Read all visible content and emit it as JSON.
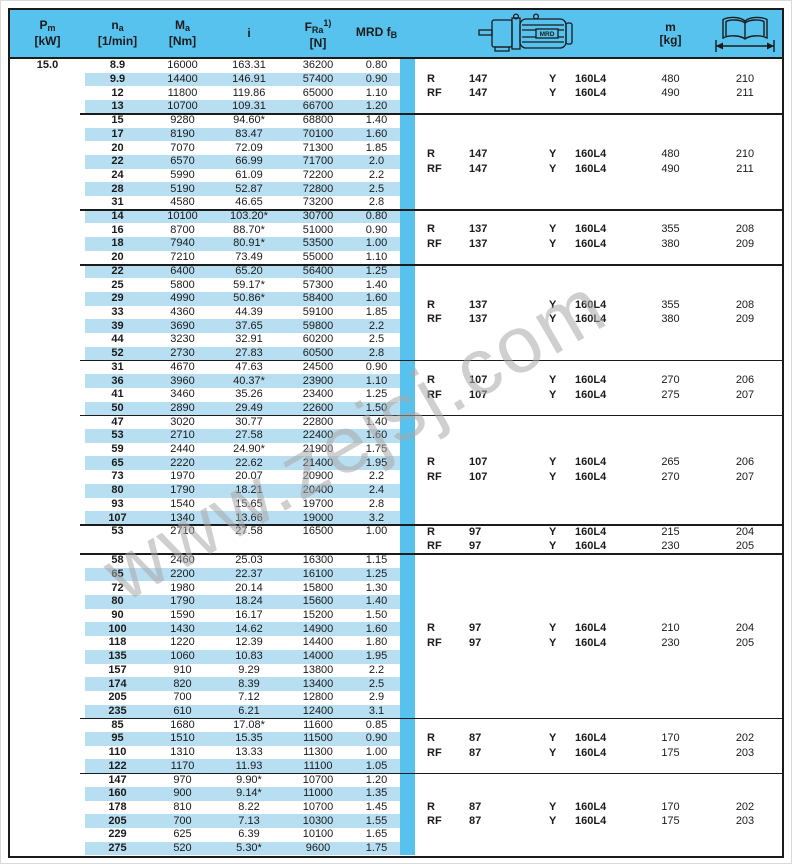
{
  "watermark": "www.zejsj.com",
  "colors": {
    "header_blue": "#58c2ee",
    "stripe_blue": "#b8def2",
    "border": "#1b1b1b"
  },
  "pm_value": "15.0",
  "header": {
    "pm": {
      "main": "P",
      "sub": "m",
      "unit": "[kW]"
    },
    "na": {
      "main": "n",
      "sub": "a",
      "unit": "[1/min]"
    },
    "ma": {
      "main": "M",
      "sub": "a",
      "unit": "[Nm]"
    },
    "i": {
      "main": "i"
    },
    "fra": {
      "main": "F",
      "sub": "Ra",
      "sup": "1)",
      "unit": "[N]"
    },
    "mrd": {
      "main": "MRD f",
      "sub": "B"
    },
    "motor_label": "MRD",
    "mass": {
      "main": "m",
      "unit": "[kg]"
    }
  },
  "groups": [
    {
      "rows": [
        {
          "na": "8.9",
          "ma": "16000",
          "i": "163.31",
          "fra": "36200",
          "fb": "0.80",
          "stripe": false
        },
        {
          "na": "9.9",
          "ma": "14400",
          "i": "146.91",
          "fra": "57400",
          "fb": "0.90",
          "stripe": true
        },
        {
          "na": "12",
          "ma": "11800",
          "i": "119.86",
          "fra": "65000",
          "fb": "1.10",
          "stripe": false
        },
        {
          "na": "13",
          "ma": "10700",
          "i": "109.31",
          "fra": "66700",
          "fb": "1.20",
          "stripe": true
        }
      ],
      "variants": [
        {
          "type": "R",
          "size": "147",
          "y": "Y",
          "motor": "160L4",
          "mass": "480",
          "page": "210"
        },
        {
          "type": "RF",
          "size": "147",
          "y": "Y",
          "motor": "160L4",
          "mass": "490",
          "page": "211"
        }
      ]
    },
    {
      "rows": [
        {
          "na": "15",
          "ma": "9280",
          "i": "94.60*",
          "fra": "68800",
          "fb": "1.40",
          "stripe": false
        },
        {
          "na": "17",
          "ma": "8190",
          "i": "83.47",
          "fra": "70100",
          "fb": "1.60",
          "stripe": true
        },
        {
          "na": "20",
          "ma": "7070",
          "i": "72.09",
          "fra": "71300",
          "fb": "1.85",
          "stripe": false
        },
        {
          "na": "22",
          "ma": "6570",
          "i": "66.99",
          "fra": "71700",
          "fb": "2.0",
          "stripe": true
        },
        {
          "na": "24",
          "ma": "5990",
          "i": "61.09",
          "fra": "72200",
          "fb": "2.2",
          "stripe": false
        },
        {
          "na": "28",
          "ma": "5190",
          "i": "52.87",
          "fra": "72800",
          "fb": "2.5",
          "stripe": true
        },
        {
          "na": "31",
          "ma": "4580",
          "i": "46.65",
          "fra": "73200",
          "fb": "2.8",
          "stripe": false
        }
      ],
      "variants": [
        {
          "type": "R",
          "size": "147",
          "y": "Y",
          "motor": "160L4",
          "mass": "480",
          "page": "210"
        },
        {
          "type": "RF",
          "size": "147",
          "y": "Y",
          "motor": "160L4",
          "mass": "490",
          "page": "211"
        }
      ]
    },
    {
      "rows": [
        {
          "na": "14",
          "ma": "10100",
          "i": "103.20*",
          "fra": "30700",
          "fb": "0.80",
          "stripe": true
        },
        {
          "na": "16",
          "ma": "8700",
          "i": "88.70*",
          "fra": "51000",
          "fb": "0.90",
          "stripe": false
        },
        {
          "na": "18",
          "ma": "7940",
          "i": "80.91*",
          "fra": "53500",
          "fb": "1.00",
          "stripe": true
        },
        {
          "na": "20",
          "ma": "7210",
          "i": "73.49",
          "fra": "55000",
          "fb": "1.10",
          "stripe": false
        }
      ],
      "variants": [
        {
          "type": "R",
          "size": "137",
          "y": "Y",
          "motor": "160L4",
          "mass": "355",
          "page": "208"
        },
        {
          "type": "RF",
          "size": "137",
          "y": "Y",
          "motor": "160L4",
          "mass": "380",
          "page": "209"
        }
      ]
    },
    {
      "rows": [
        {
          "na": "22",
          "ma": "6400",
          "i": "65.20",
          "fra": "56400",
          "fb": "1.25",
          "stripe": true
        },
        {
          "na": "25",
          "ma": "5800",
          "i": "59.17*",
          "fra": "57300",
          "fb": "1.40",
          "stripe": false
        },
        {
          "na": "29",
          "ma": "4990",
          "i": "50.86*",
          "fra": "58400",
          "fb": "1.60",
          "stripe": true
        },
        {
          "na": "33",
          "ma": "4360",
          "i": "44.39",
          "fra": "59100",
          "fb": "1.85",
          "stripe": false
        },
        {
          "na": "39",
          "ma": "3690",
          "i": "37.65",
          "fra": "59800",
          "fb": "2.2",
          "stripe": true
        },
        {
          "na": "44",
          "ma": "3230",
          "i": "32.91",
          "fra": "60200",
          "fb": "2.5",
          "stripe": false
        },
        {
          "na": "52",
          "ma": "2730",
          "i": "27.83",
          "fra": "60500",
          "fb": "2.8",
          "stripe": true
        }
      ],
      "variants": [
        {
          "type": "R",
          "size": "137",
          "y": "Y",
          "motor": "160L4",
          "mass": "355",
          "page": "208"
        },
        {
          "type": "RF",
          "size": "137",
          "y": "Y",
          "motor": "160L4",
          "mass": "380",
          "page": "209"
        }
      ]
    },
    {
      "rows": [
        {
          "na": "31",
          "ma": "4670",
          "i": "47.63",
          "fra": "24500",
          "fb": "0.90",
          "stripe": false
        },
        {
          "na": "36",
          "ma": "3960",
          "i": "40.37*",
          "fra": "23900",
          "fb": "1.10",
          "stripe": true
        },
        {
          "na": "41",
          "ma": "3460",
          "i": "35.26",
          "fra": "23400",
          "fb": "1.25",
          "stripe": false
        },
        {
          "na": "50",
          "ma": "2890",
          "i": "29.49",
          "fra": "22600",
          "fb": "1.50",
          "stripe": true
        }
      ],
      "variants": [
        {
          "type": "R",
          "size": "107",
          "y": "Y",
          "motor": "160L4",
          "mass": "270",
          "page": "206"
        },
        {
          "type": "RF",
          "size": "107",
          "y": "Y",
          "motor": "160L4",
          "mass": "275",
          "page": "207"
        }
      ]
    },
    {
      "rows": [
        {
          "na": "47",
          "ma": "3020",
          "i": "30.77",
          "fra": "22800",
          "fb": "1.40",
          "stripe": false
        },
        {
          "na": "53",
          "ma": "2710",
          "i": "27.58",
          "fra": "22400",
          "fb": "1.60",
          "stripe": true
        },
        {
          "na": "59",
          "ma": "2440",
          "i": "24.90*",
          "fra": "21900",
          "fb": "1.75",
          "stripe": false
        },
        {
          "na": "65",
          "ma": "2220",
          "i": "22.62",
          "fra": "21400",
          "fb": "1.95",
          "stripe": true
        },
        {
          "na": "73",
          "ma": "1970",
          "i": "20.07",
          "fra": "20900",
          "fb": "2.2",
          "stripe": false
        },
        {
          "na": "80",
          "ma": "1790",
          "i": "18.21",
          "fra": "20400",
          "fb": "2.4",
          "stripe": true
        },
        {
          "na": "93",
          "ma": "1540",
          "i": "15.65",
          "fra": "19700",
          "fb": "2.8",
          "stripe": false
        },
        {
          "na": "107",
          "ma": "1340",
          "i": "13.66",
          "fra": "19000",
          "fb": "3.2",
          "stripe": true
        }
      ],
      "variants": [
        {
          "type": "R",
          "size": "107",
          "y": "Y",
          "motor": "160L4",
          "mass": "265",
          "page": "206"
        },
        {
          "type": "RF",
          "size": "107",
          "y": "Y",
          "motor": "160L4",
          "mass": "270",
          "page": "207"
        }
      ]
    },
    {
      "rows": [
        {
          "na": "53",
          "ma": "2710",
          "i": "27.58",
          "fra": "16500",
          "fb": "1.00",
          "stripe": false
        },
        {
          "na": "",
          "ma": "",
          "i": "",
          "fra": "",
          "fb": "",
          "stripe": false
        }
      ],
      "variants": [
        {
          "type": "R",
          "size": "97",
          "y": "Y",
          "motor": "160L4",
          "mass": "215",
          "page": "204"
        },
        {
          "type": "RF",
          "size": "97",
          "y": "Y",
          "motor": "160L4",
          "mass": "230",
          "page": "205"
        }
      ]
    },
    {
      "rows": [
        {
          "na": "58",
          "ma": "2460",
          "i": "25.03",
          "fra": "16300",
          "fb": "1.15",
          "stripe": false
        },
        {
          "na": "65",
          "ma": "2200",
          "i": "22.37",
          "fra": "16100",
          "fb": "1.25",
          "stripe": true
        },
        {
          "na": "72",
          "ma": "1980",
          "i": "20.14",
          "fra": "15800",
          "fb": "1.30",
          "stripe": false
        },
        {
          "na": "80",
          "ma": "1790",
          "i": "18.24",
          "fra": "15600",
          "fb": "1.40",
          "stripe": true
        },
        {
          "na": "90",
          "ma": "1590",
          "i": "16.17",
          "fra": "15200",
          "fb": "1.50",
          "stripe": false
        },
        {
          "na": "100",
          "ma": "1430",
          "i": "14.62",
          "fra": "14900",
          "fb": "1.60",
          "stripe": true
        },
        {
          "na": "118",
          "ma": "1220",
          "i": "12.39",
          "fra": "14400",
          "fb": "1.80",
          "stripe": false
        },
        {
          "na": "135",
          "ma": "1060",
          "i": "10.83",
          "fra": "14000",
          "fb": "1.95",
          "stripe": true
        },
        {
          "na": "157",
          "ma": "910",
          "i": "9.29",
          "fra": "13800",
          "fb": "2.2",
          "stripe": false
        },
        {
          "na": "174",
          "ma": "820",
          "i": "8.39",
          "fra": "13400",
          "fb": "2.5",
          "stripe": true
        },
        {
          "na": "205",
          "ma": "700",
          "i": "7.12",
          "fra": "12800",
          "fb": "2.9",
          "stripe": false
        },
        {
          "na": "235",
          "ma": "610",
          "i": "6.21",
          "fra": "12400",
          "fb": "3.1",
          "stripe": true
        }
      ],
      "variants": [
        {
          "type": "R",
          "size": "97",
          "y": "Y",
          "motor": "160L4",
          "mass": "210",
          "page": "204"
        },
        {
          "type": "RF",
          "size": "97",
          "y": "Y",
          "motor": "160L4",
          "mass": "230",
          "page": "205"
        }
      ]
    },
    {
      "rows": [
        {
          "na": "85",
          "ma": "1680",
          "i": "17.08*",
          "fra": "11600",
          "fb": "0.85",
          "stripe": false
        },
        {
          "na": "95",
          "ma": "1510",
          "i": "15.35",
          "fra": "11500",
          "fb": "0.90",
          "stripe": true
        },
        {
          "na": "110",
          "ma": "1310",
          "i": "13.33",
          "fra": "11300",
          "fb": "1.00",
          "stripe": false
        },
        {
          "na": "122",
          "ma": "1170",
          "i": "11.93",
          "fra": "11100",
          "fb": "1.05",
          "stripe": true
        }
      ],
      "variants": [
        {
          "type": "R",
          "size": "87",
          "y": "Y",
          "motor": "160L4",
          "mass": "170",
          "page": "202"
        },
        {
          "type": "RF",
          "size": "87",
          "y": "Y",
          "motor": "160L4",
          "mass": "175",
          "page": "203"
        }
      ]
    },
    {
      "rows": [
        {
          "na": "147",
          "ma": "970",
          "i": "9.90*",
          "fra": "10700",
          "fb": "1.20",
          "stripe": false
        },
        {
          "na": "160",
          "ma": "900",
          "i": "9.14*",
          "fra": "11000",
          "fb": "1.35",
          "stripe": true
        },
        {
          "na": "178",
          "ma": "810",
          "i": "8.22",
          "fra": "10700",
          "fb": "1.45",
          "stripe": false
        },
        {
          "na": "205",
          "ma": "700",
          "i": "7.13",
          "fra": "10300",
          "fb": "1.55",
          "stripe": true
        },
        {
          "na": "229",
          "ma": "625",
          "i": "6.39",
          "fra": "10100",
          "fb": "1.65",
          "stripe": false
        },
        {
          "na": "275",
          "ma": "520",
          "i": "5.30*",
          "fra": "9600",
          "fb": "1.75",
          "stripe": true
        }
      ],
      "variants": [
        {
          "type": "R",
          "size": "87",
          "y": "Y",
          "motor": "160L4",
          "mass": "170",
          "page": "202"
        },
        {
          "type": "RF",
          "size": "87",
          "y": "Y",
          "motor": "160L4",
          "mass": "175",
          "page": "203"
        }
      ]
    }
  ]
}
